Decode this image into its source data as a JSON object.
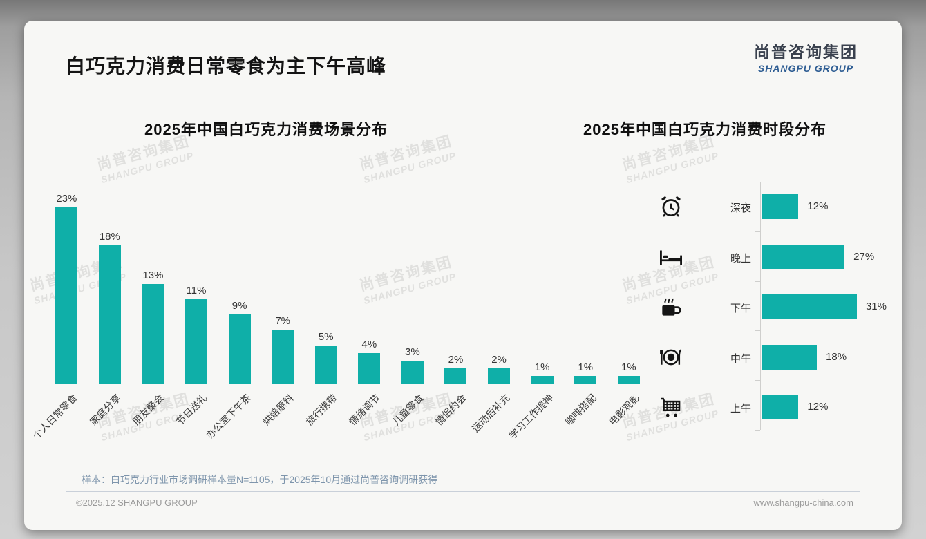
{
  "page": {
    "title": "白巧克力消费日常零食为主下午高峰",
    "logo": {
      "cn": "尚普咨询集团",
      "en": "SHANGPU GROUP"
    },
    "watermark": {
      "cn": "尚普咨询集团",
      "en": "SHANGPU GROUP"
    },
    "footer": {
      "sample_note": "样本：白巧克力行业市场调研样本量N=1105，于2025年10月通过尚普咨询调研获得",
      "copyright": "©2025.12 SHANGPU GROUP",
      "website": "www.shangpu-china.com"
    }
  },
  "colors": {
    "bar": "#0fafa8",
    "logo_blue": "#2e5d93",
    "note_blue": "#7e95ac"
  },
  "chart_data": [
    {
      "type": "bar",
      "orientation": "vertical",
      "title": "2025年中国白巧克力消费场景分布",
      "categories": [
        "个人日常零食",
        "家庭分享",
        "朋友聚会",
        "节日送礼",
        "办公室下午茶",
        "烘焙原料",
        "旅行携带",
        "情绪调节",
        "儿童零食",
        "情侣约会",
        "运动后补充",
        "学习工作提神",
        "咖啡搭配",
        "电影观影"
      ],
      "values": [
        23,
        18,
        13,
        11,
        9,
        7,
        5,
        4,
        3,
        2,
        2,
        1,
        1,
        1
      ],
      "unit": "%",
      "ylim": [
        0,
        25
      ],
      "grid": false,
      "legend": "none",
      "bar_color": "#0fafa8"
    },
    {
      "type": "bar",
      "orientation": "horizontal",
      "title": "2025年中国白巧克力消费时段分布",
      "categories": [
        "深夜",
        "晚上",
        "下午",
        "中午",
        "上午"
      ],
      "values": [
        12,
        27,
        31,
        18,
        12
      ],
      "icons": [
        "alarm-clock-icon",
        "bed-icon",
        "coffee-icon",
        "restaurant-plate-icon",
        "shopping-cart-icon"
      ],
      "unit": "%",
      "xlim": [
        0,
        35
      ],
      "grid": false,
      "legend": "none",
      "bar_color": "#0fafa8"
    }
  ]
}
